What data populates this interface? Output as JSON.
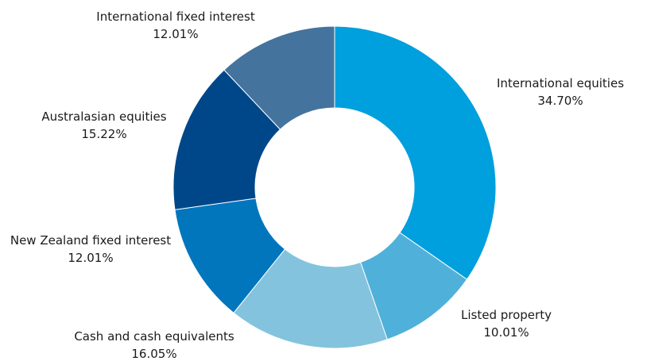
{
  "chart_data": {
    "type": "pie",
    "variant": "donut",
    "start": "12 o'clock, clockwise",
    "legend": "none",
    "slices": [
      {
        "name": "International equities",
        "value": 34.7,
        "display": "34.70%",
        "color": "#009fdd"
      },
      {
        "name": "Listed property",
        "value": 10.01,
        "display": "10.01%",
        "color": "#4fb1d9"
      },
      {
        "name": "Cash and cash equivalents",
        "value": 16.05,
        "display": "16.05%",
        "color": "#84c3de"
      },
      {
        "name": "New Zealand fixed interest",
        "value": 12.01,
        "display": "12.01%",
        "color": "#0176bd"
      },
      {
        "name": "Australasian equities",
        "value": 15.22,
        "display": "15.22%",
        "color": "#00478a"
      },
      {
        "name": "International fixed interest",
        "value": 12.01,
        "display": "12.01%",
        "color": "#44739e"
      }
    ]
  }
}
